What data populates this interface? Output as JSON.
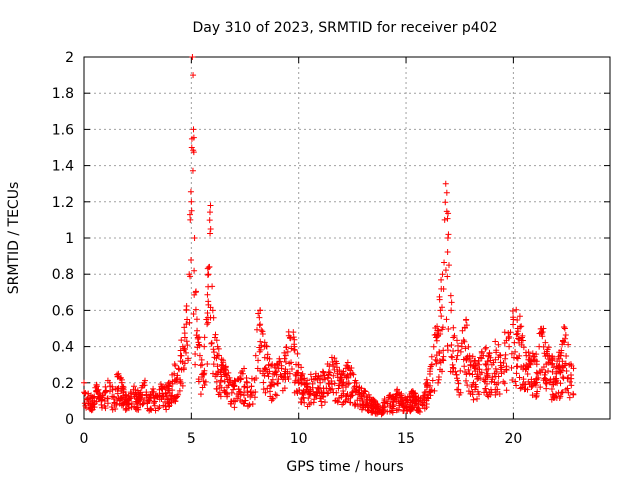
{
  "chart_data": {
    "type": "scatter",
    "title": "Day 310 of 2023, SRMTID for receiver p402",
    "xlabel": "GPS time / hours",
    "ylabel": "SRMTID / TECUs",
    "xlim": [
      0,
      24.5
    ],
    "ylim": [
      0,
      2
    ],
    "xticks": [
      0,
      5,
      10,
      15,
      20
    ],
    "xtick_labels": [
      "0",
      "5",
      "10",
      "15",
      "20"
    ],
    "yticks": [
      0,
      0.2,
      0.4,
      0.6,
      0.8,
      1,
      1.2,
      1.4,
      1.6,
      1.8,
      2
    ],
    "ytick_labels": [
      "0",
      "0.2",
      "0.4",
      "0.6",
      "0.8",
      "1",
      "1.2",
      "1.4",
      "1.6",
      "1.8",
      "2"
    ],
    "grid": true,
    "marker": "plus",
    "color": "#ff0000",
    "series": [
      {
        "name": "SRMTID",
        "x": [
          0.0,
          0.2,
          0.4,
          0.6,
          0.8,
          1.0,
          1.2,
          1.4,
          1.6,
          1.8,
          2.0,
          2.2,
          2.4,
          2.6,
          2.8,
          3.0,
          3.2,
          3.4,
          3.6,
          3.8,
          4.0,
          4.2,
          4.4,
          4.5,
          4.6,
          4.7,
          4.8,
          4.9,
          4.95,
          5.0,
          5.02,
          5.05,
          5.08,
          5.1,
          5.15,
          5.2,
          5.3,
          5.4,
          5.5,
          5.6,
          5.7,
          5.8,
          5.9,
          6.0,
          6.1,
          6.2,
          6.4,
          6.6,
          6.8,
          7.0,
          7.2,
          7.4,
          7.6,
          7.8,
          8.0,
          8.2,
          8.4,
          8.6,
          8.8,
          9.0,
          9.2,
          9.4,
          9.6,
          9.8,
          10.0,
          10.2,
          10.4,
          10.6,
          10.8,
          11.0,
          11.2,
          11.4,
          11.6,
          11.8,
          12.0,
          12.2,
          12.4,
          12.6,
          12.8,
          13.0,
          13.2,
          13.4,
          13.6,
          13.8,
          14.0,
          14.2,
          14.4,
          14.6,
          14.8,
          15.0,
          15.2,
          15.4,
          15.6,
          15.8,
          16.0,
          16.2,
          16.4,
          16.6,
          16.7,
          16.8,
          16.85,
          16.9,
          16.95,
          17.0,
          17.1,
          17.2,
          17.4,
          17.6,
          17.8,
          18.0,
          18.2,
          18.4,
          18.6,
          18.8,
          19.0,
          19.2,
          19.4,
          19.6,
          19.8,
          20.0,
          20.2,
          20.4,
          20.6,
          20.8,
          21.0,
          21.2,
          21.4,
          21.6,
          21.8,
          22.0,
          22.2,
          22.4,
          22.6,
          22.8
        ],
        "y": [
          0.2,
          0.14,
          0.12,
          0.18,
          0.1,
          0.15,
          0.2,
          0.12,
          0.25,
          0.18,
          0.1,
          0.14,
          0.16,
          0.12,
          0.2,
          0.1,
          0.15,
          0.12,
          0.18,
          0.14,
          0.2,
          0.25,
          0.28,
          0.35,
          0.4,
          0.45,
          0.55,
          0.8,
          1.1,
          1.2,
          1.5,
          2.0,
          1.9,
          1.6,
          1.0,
          0.7,
          0.45,
          0.35,
          0.3,
          0.4,
          0.55,
          0.8,
          1.05,
          0.6,
          0.45,
          0.35,
          0.3,
          0.25,
          0.2,
          0.18,
          0.22,
          0.25,
          0.2,
          0.18,
          0.35,
          0.6,
          0.4,
          0.3,
          0.25,
          0.3,
          0.28,
          0.35,
          0.45,
          0.4,
          0.3,
          0.2,
          0.18,
          0.22,
          0.25,
          0.2,
          0.24,
          0.26,
          0.3,
          0.25,
          0.22,
          0.28,
          0.25,
          0.2,
          0.16,
          0.14,
          0.12,
          0.1,
          0.08,
          0.06,
          0.1,
          0.12,
          0.1,
          0.14,
          0.12,
          0.1,
          0.12,
          0.14,
          0.1,
          0.12,
          0.2,
          0.3,
          0.45,
          0.6,
          0.8,
          1.1,
          1.3,
          1.25,
          1.0,
          0.85,
          0.6,
          0.45,
          0.35,
          0.4,
          0.55,
          0.3,
          0.28,
          0.3,
          0.35,
          0.32,
          0.3,
          0.38,
          0.35,
          0.42,
          0.4,
          0.55,
          0.5,
          0.45,
          0.35,
          0.3,
          0.32,
          0.4,
          0.5,
          0.35,
          0.3,
          0.25,
          0.35,
          0.5,
          0.3,
          0.28
        ],
        "jitter_count": 1500
      }
    ]
  }
}
